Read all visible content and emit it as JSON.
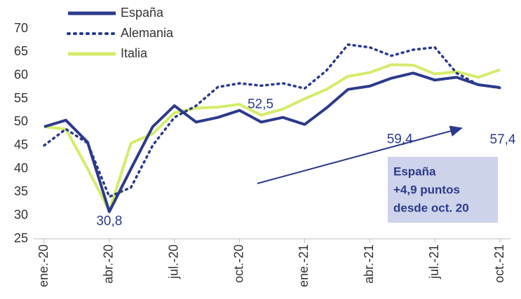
{
  "chart_data": {
    "type": "line",
    "categories": [
      "ene.-20",
      null,
      null,
      "abr.-20",
      null,
      null,
      "jul.-20",
      null,
      null,
      "oct.-20",
      null,
      null,
      "ene.-21",
      null,
      null,
      "abr.-21",
      null,
      null,
      "jul.-21",
      null,
      null,
      "oct.-21"
    ],
    "series": [
      {
        "name": "España",
        "color": "#2b3a8c",
        "style": "solid",
        "values": [
          49,
          50.4,
          45.7,
          30.8,
          40,
          49,
          53.5,
          50,
          51,
          52.5,
          50,
          51,
          49.5,
          53,
          57,
          57.7,
          59.4,
          60.5,
          59,
          59.6,
          58,
          57.4
        ],
        "value_labels": [
          null,
          null,
          null,
          "30,8",
          null,
          null,
          null,
          null,
          null,
          "52,5",
          null,
          null,
          null,
          null,
          null,
          null,
          "59,4",
          null,
          null,
          null,
          null,
          "57,4"
        ]
      },
      {
        "name": "Alemania",
        "color": "#2b3a8c",
        "style": "dotted",
        "values": [
          45,
          48.5,
          45.5,
          34,
          36,
          45,
          51,
          53.5,
          57.5,
          58.3,
          57.8,
          58.3,
          57.2,
          61,
          66.6,
          66,
          64.2,
          65.5,
          66,
          60.5,
          58,
          57.3
        ]
      },
      {
        "name": "Italia",
        "color": "#d4ec6a",
        "style": "solid",
        "values": [
          49,
          48.5,
          40,
          31,
          45.5,
          47.5,
          52,
          53,
          53.2,
          53.8,
          51.5,
          52.8,
          55,
          57,
          59.8,
          60.6,
          62.3,
          62.2,
          60.3,
          60.8,
          59.6,
          61.2
        ]
      }
    ],
    "ylim": [
      25,
      70
    ],
    "yticks": [
      25,
      30,
      35,
      40,
      45,
      50,
      55,
      60,
      65,
      70
    ],
    "annotation": [
      "España",
      "+4,9 puntos",
      "desde oct. 20"
    ]
  }
}
